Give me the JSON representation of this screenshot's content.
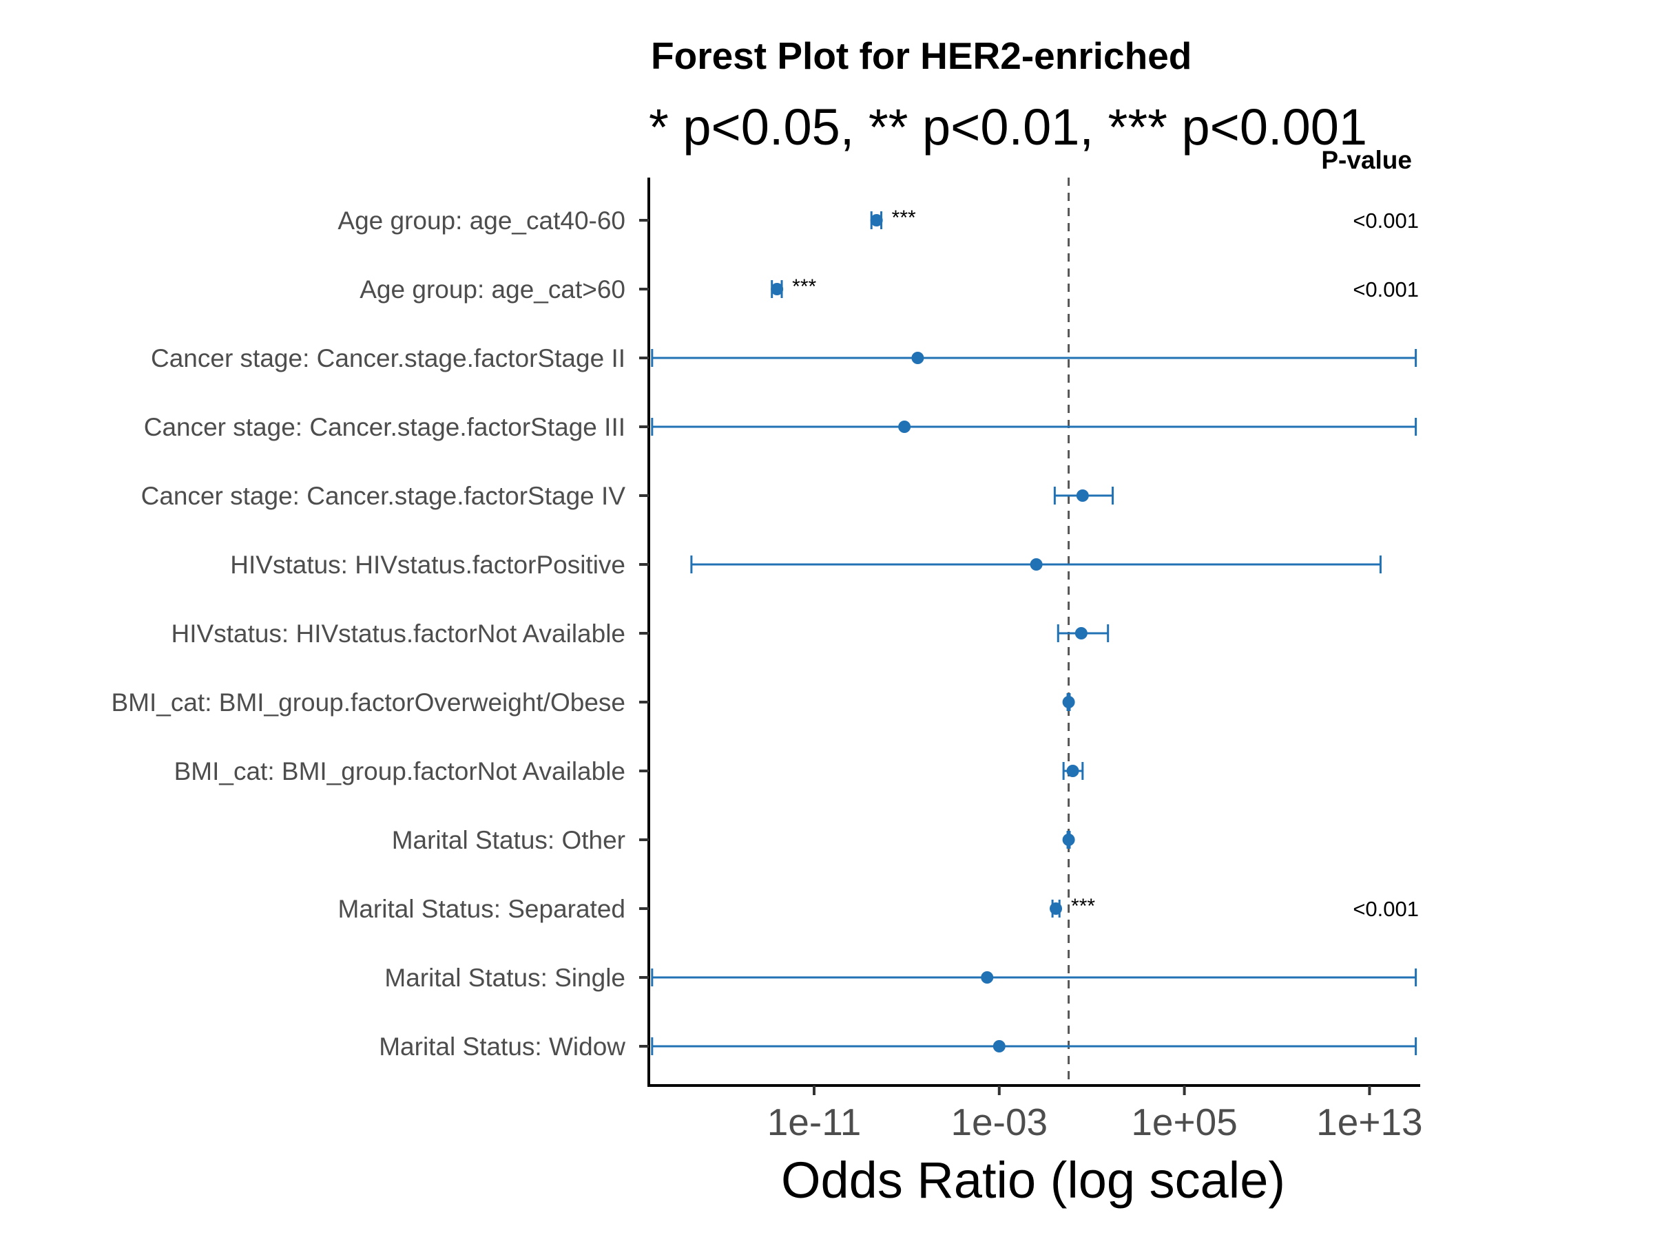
{
  "chart_data": {
    "type": "forest",
    "title": "Forest Plot for HER2-enriched",
    "subtitle": "* p<0.05, ** p<0.01, *** p<0.001",
    "xlabel": "Odds Ratio (log scale)",
    "ylabel": "",
    "x_scale": "log10",
    "xlim": [
      1e-18,
      1000000000000000.0
    ],
    "x_ticks": [
      {
        "value": 1e-11,
        "label": "1e-11"
      },
      {
        "value": 0.001,
        "label": "1e-03"
      },
      {
        "value": 100000.0,
        "label": "1e+05"
      },
      {
        "value": 10000000000000.0,
        "label": "1e+13"
      }
    ],
    "reference_line": 1,
    "pvalue_header": "P-value",
    "marker_color": "#2171b5",
    "grid": false,
    "rows": [
      {
        "label": "Age group: age_cat40-60",
        "or": 5e-09,
        "lower": 3e-09,
        "upper": 8e-09,
        "sig": "***",
        "pvalue": "<0.001"
      },
      {
        "label": "Age group: age_cat>60",
        "or": 2.5e-13,
        "lower": 1.5e-13,
        "upper": 4e-13,
        "sig": "***",
        "pvalue": "<0.001"
      },
      {
        "label": "Cancer stage: Cancer.stage.factorStage II",
        "or": 3e-07,
        "lower": 1e-18,
        "upper": 1000000000000000.0,
        "sig": "",
        "pvalue": ""
      },
      {
        "label": "Cancer stage: Cancer.stage.factorStage III",
        "or": 8e-08,
        "lower": 1e-18,
        "upper": 1000000000000000.0,
        "sig": "",
        "pvalue": ""
      },
      {
        "label": "Cancer stage: Cancer.stage.factorStage IV",
        "or": 4,
        "lower": 0.25,
        "upper": 80,
        "sig": "",
        "pvalue": ""
      },
      {
        "label": "HIVstatus: HIVstatus.factorPositive",
        "or": 0.04,
        "lower": 5e-17,
        "upper": 30000000000000.0,
        "sig": "",
        "pvalue": ""
      },
      {
        "label": "HIVstatus: HIVstatus.factorNot Available",
        "or": 3.5,
        "lower": 0.35,
        "upper": 50,
        "sig": "",
        "pvalue": ""
      },
      {
        "label": "BMI_cat: BMI_group.factorOverweight/Obese",
        "or": 1.0,
        "lower": 0.9,
        "upper": 1.1,
        "sig": "",
        "pvalue": ""
      },
      {
        "label": "BMI_cat: BMI_group.factorNot Available",
        "or": 1.5,
        "lower": 0.6,
        "upper": 4,
        "sig": "",
        "pvalue": ""
      },
      {
        "label": "Marital Status: Other",
        "or": 1.0,
        "lower": 0.9,
        "upper": 1.1,
        "sig": "",
        "pvalue": ""
      },
      {
        "label": "Marital Status: Separated",
        "or": 0.28,
        "lower": 0.2,
        "upper": 0.4,
        "sig": "***",
        "pvalue": "<0.001"
      },
      {
        "label": "Marital Status: Single",
        "or": 0.0003,
        "lower": 1e-18,
        "upper": 1000000000000000.0,
        "sig": "",
        "pvalue": ""
      },
      {
        "label": "Marital Status: Widow",
        "or": 0.001,
        "lower": 1e-18,
        "upper": 1000000000000000.0,
        "sig": "",
        "pvalue": ""
      }
    ]
  }
}
